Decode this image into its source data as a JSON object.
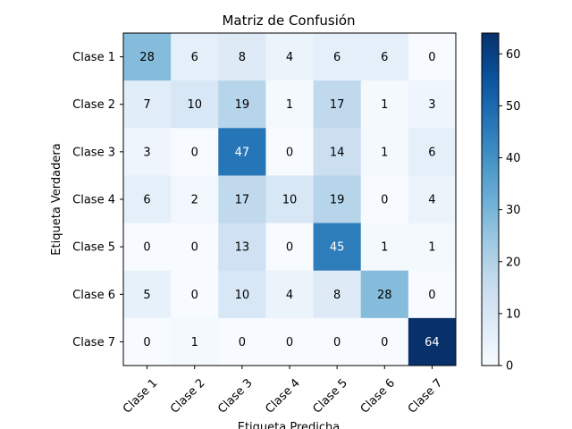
{
  "chart_data": {
    "type": "heatmap",
    "title": "Matriz de Confusión",
    "xlabel": "Etiqueta Predicha",
    "ylabel": "Etiqueta Verdadera",
    "x_categories": [
      "Clase 1",
      "Clase 2",
      "Clase 3",
      "Clase 4",
      "Clase 5",
      "Clase 6",
      "Clase 7"
    ],
    "y_categories": [
      "Clase 1",
      "Clase 2",
      "Clase 3",
      "Clase 4",
      "Clase 5",
      "Clase 6",
      "Clase 7"
    ],
    "values": [
      [
        28,
        6,
        8,
        4,
        6,
        6,
        0
      ],
      [
        7,
        10,
        19,
        1,
        17,
        1,
        3
      ],
      [
        3,
        0,
        47,
        0,
        14,
        1,
        6
      ],
      [
        6,
        2,
        17,
        10,
        19,
        0,
        4
      ],
      [
        0,
        0,
        13,
        0,
        45,
        1,
        1
      ],
      [
        5,
        0,
        10,
        4,
        8,
        28,
        0
      ],
      [
        0,
        1,
        0,
        0,
        0,
        0,
        64
      ]
    ],
    "colorbar": {
      "min": 0,
      "max": 64,
      "ticks": [
        0,
        10,
        20,
        30,
        40,
        50,
        60
      ]
    },
    "colormap": "Blues",
    "grid": false,
    "legend": "none"
  }
}
